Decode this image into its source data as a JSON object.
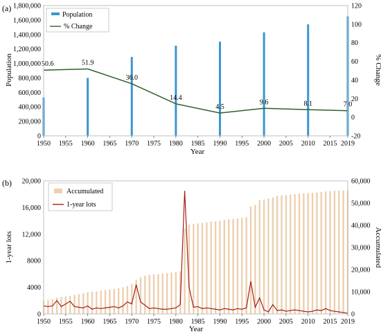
{
  "chart_data": [
    {
      "type": "bar",
      "panel_label": "(a)",
      "xlabel": "Year",
      "ylabel": "Population",
      "y2label": "% Change",
      "ylim": [
        0,
        1800000
      ],
      "y2lim": [
        -20,
        120
      ],
      "xlim": [
        1950,
        2019
      ],
      "x_ticks": [
        "1950",
        "1955",
        "1960",
        "1965",
        "1970",
        "1975",
        "1980",
        "1985",
        "1990",
        "1995",
        "2000",
        "2005",
        "2010",
        "2015",
        "2019"
      ],
      "y_ticks": [
        "0",
        "200,000",
        "400,000",
        "600,000",
        "800,000",
        "1,000,000",
        "1,200,000",
        "1,400,000",
        "1,600,000",
        "1,800,000"
      ],
      "y2_ticks": [
        "-20",
        "0",
        "20",
        "40",
        "60",
        "80",
        "100",
        "120"
      ],
      "legend": {
        "placement": "top-left",
        "items": [
          "Population",
          "% Change"
        ]
      },
      "colors": {
        "population": "#3a96d0",
        "change": "#2f5f2a"
      },
      "series": [
        {
          "name": "Population",
          "type": "bar",
          "x": [
            1950,
            1960,
            1970,
            1980,
            1990,
            2000,
            2010,
            2019
          ],
          "values": [
            530000,
            800000,
            1090000,
            1245000,
            1300000,
            1430000,
            1540000,
            1650000
          ]
        },
        {
          "name": "% Change",
          "type": "line",
          "axis": "right",
          "x": [
            1950,
            1960,
            1970,
            1980,
            1990,
            2000,
            2010,
            2019
          ],
          "values": [
            50.6,
            51.9,
            36.0,
            14.4,
            4.5,
            9.6,
            8.1,
            7.0
          ],
          "labels": [
            "50.6",
            "51.9",
            "36.0",
            "14.4",
            "4.5",
            "9.6",
            "8.1",
            "7.0"
          ]
        }
      ]
    },
    {
      "type": "bar",
      "panel_label": "(b)",
      "xlabel": "Year",
      "ylabel": "1-year lots",
      "y2label": "Accumulated",
      "ylim": [
        0,
        20000
      ],
      "y2lim": [
        0,
        60000
      ],
      "xlim": [
        1950,
        2019
      ],
      "x_ticks": [
        "1950",
        "1955",
        "1960",
        "1965",
        "1970",
        "1975",
        "1980",
        "1985",
        "1990",
        "1995",
        "2000",
        "2005",
        "2010",
        "2015",
        "2019"
      ],
      "y_ticks": [
        "0",
        "4000",
        "8000",
        "12,000",
        "16,000",
        "20,000"
      ],
      "y2_ticks": [
        "0",
        "10,000",
        "20,000",
        "30,000",
        "40,000",
        "50,000",
        "60,000"
      ],
      "legend": {
        "placement": "top-left",
        "items": [
          "Accumulated",
          "1-year lots"
        ]
      },
      "colors": {
        "accumulated": "#ecd0b0",
        "lots": "#a31e16"
      },
      "series": [
        {
          "name": "Accumulated",
          "type": "bar",
          "axis": "right",
          "x": [
            1950,
            1951,
            1952,
            1953,
            1954,
            1955,
            1956,
            1957,
            1958,
            1959,
            1960,
            1961,
            1962,
            1963,
            1964,
            1965,
            1966,
            1967,
            1968,
            1969,
            1970,
            1971,
            1972,
            1973,
            1974,
            1975,
            1976,
            1977,
            1978,
            1979,
            1980,
            1981,
            1982,
            1983,
            1984,
            1985,
            1986,
            1987,
            1988,
            1989,
            1990,
            1991,
            1992,
            1993,
            1994,
            1995,
            1996,
            1997,
            1998,
            1999,
            2000,
            2001,
            2002,
            2003,
            2004,
            2005,
            2006,
            2007,
            2008,
            2009,
            2010,
            2011,
            2012,
            2013,
            2014,
            2015,
            2016,
            2017,
            2018,
            2019
          ],
          "values": [
            6000,
            6400,
            6700,
            7300,
            7600,
            7800,
            8200,
            8600,
            9000,
            9300,
            9800,
            10000,
            10200,
            10500,
            10800,
            11000,
            11300,
            11600,
            12000,
            12600,
            13500,
            15500,
            16500,
            17200,
            17600,
            17800,
            18000,
            18200,
            18400,
            18600,
            18900,
            19200,
            38500,
            40300,
            40600,
            40800,
            41100,
            41300,
            41600,
            41800,
            42100,
            42400,
            42600,
            42800,
            43000,
            43300,
            43600,
            48500,
            49200,
            51300,
            51600,
            52100,
            52500,
            53200,
            53400,
            53600,
            53800,
            54000,
            54200,
            54400,
            54500,
            54600,
            54800,
            55000,
            55200,
            55400,
            55500,
            55600,
            55700,
            55800
          ]
        },
        {
          "name": "1-year lots",
          "type": "line",
          "x": [
            1950,
            1951,
            1952,
            1953,
            1954,
            1955,
            1956,
            1957,
            1958,
            1959,
            1960,
            1961,
            1962,
            1963,
            1964,
            1965,
            1966,
            1967,
            1968,
            1969,
            1970,
            1971,
            1972,
            1973,
            1974,
            1975,
            1976,
            1977,
            1978,
            1979,
            1980,
            1981,
            1982,
            1983,
            1984,
            1985,
            1986,
            1987,
            1988,
            1989,
            1990,
            1991,
            1992,
            1993,
            1994,
            1995,
            1996,
            1997,
            1998,
            1999,
            2000,
            2001,
            2002,
            2003,
            2004,
            2005,
            2006,
            2007,
            2008,
            2009,
            2010,
            2011,
            2012,
            2013,
            2014,
            2015,
            2016,
            2017,
            2018,
            2019
          ],
          "values": [
            1200,
            1100,
            1200,
            2000,
            1100,
            1500,
            1900,
            1100,
            1000,
            900,
            1200,
            700,
            900,
            800,
            900,
            1000,
            1100,
            900,
            1200,
            1800,
            1500,
            4400,
            1800,
            1300,
            800,
            900,
            800,
            700,
            700,
            800,
            900,
            1400,
            18500,
            4000,
            1000,
            1100,
            800,
            900,
            800,
            700,
            600,
            800,
            700,
            600,
            800,
            700,
            900,
            4900,
            1000,
            2400,
            600,
            300,
            1400,
            500,
            600,
            400,
            500,
            600,
            500,
            400,
            300,
            400,
            600,
            500,
            800,
            500,
            400,
            300,
            200,
            100
          ]
        }
      ]
    }
  ]
}
